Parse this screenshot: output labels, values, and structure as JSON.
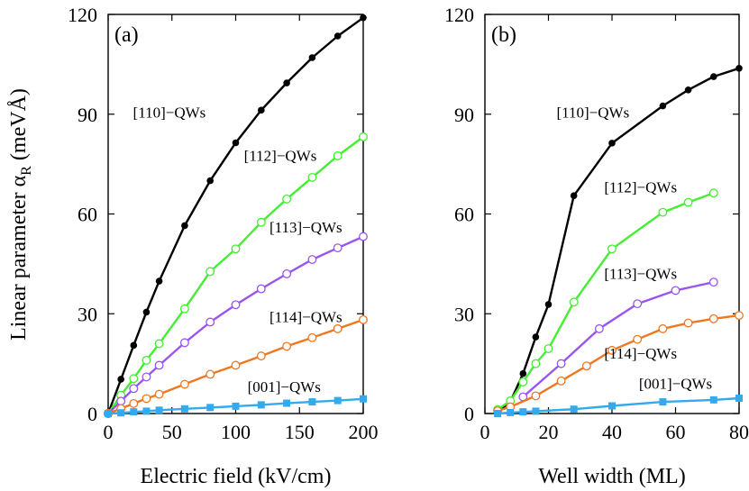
{
  "ylabel_text": "Linear parameter α",
  "ylabel_sub": "R",
  "ylabel_unit": " (meVÅ)",
  "chart_data": [
    {
      "type": "line",
      "panel_label": "(a)",
      "xlabel": "Electric field (kV/cm)",
      "ylabel": "Linear parameter αR (meVÅ)",
      "xlim": [
        0,
        200
      ],
      "ylim": [
        0,
        120
      ],
      "xticks": [
        0,
        50,
        100,
        150,
        200
      ],
      "yticks": [
        0,
        30,
        60,
        90,
        120
      ],
      "series": [
        {
          "name": "[110]−QWs",
          "color": "#000000",
          "marker": "filled-circle",
          "x": [
            0,
            10,
            20,
            30,
            40,
            60,
            80,
            100,
            120,
            140,
            160,
            180,
            200
          ],
          "y": [
            0,
            10.3,
            20.5,
            30.5,
            39.8,
            56.5,
            70,
            81.4,
            91.2,
            99.4,
            107,
            113.5,
            119
          ],
          "label_pos": [
            48,
            89
          ]
        },
        {
          "name": "[112]−QWs",
          "color": "#44ee33",
          "marker": "open-circle",
          "x": [
            0,
            10,
            20,
            30,
            40,
            60,
            80,
            100,
            120,
            140,
            160,
            180,
            200
          ],
          "y": [
            0,
            5.5,
            10.5,
            16,
            21,
            31.5,
            42.7,
            49.5,
            57.5,
            64.5,
            71,
            77.5,
            83.2
          ],
          "label_pos": [
            135,
            76
          ]
        },
        {
          "name": "[113]−QWs",
          "color": "#9955ee",
          "marker": "open-circle",
          "x": [
            0,
            10,
            20,
            30,
            40,
            60,
            80,
            100,
            120,
            140,
            160,
            180,
            200
          ],
          "y": [
            0,
            3.7,
            7.5,
            11,
            14.5,
            21.3,
            27.5,
            32.7,
            37.5,
            42,
            46.3,
            49.8,
            53.2
          ],
          "label_pos": [
            155,
            54.5
          ]
        },
        {
          "name": "[114]−QWs",
          "color": "#ee7722",
          "marker": "open-circle",
          "x": [
            0,
            10,
            20,
            30,
            40,
            60,
            80,
            100,
            120,
            140,
            160,
            180,
            200
          ],
          "y": [
            0,
            1.5,
            3,
            4.5,
            5.8,
            8.8,
            11.8,
            14.5,
            17.3,
            20.2,
            22.8,
            25.5,
            28.2
          ],
          "label_pos": [
            155,
            27.5
          ]
        },
        {
          "name": "[001]−QWs",
          "color": "#33aaee",
          "marker": "filled-square",
          "x": [
            0,
            10,
            20,
            30,
            40,
            60,
            80,
            100,
            120,
            140,
            160,
            180,
            200
          ],
          "y": [
            0,
            0.2,
            0.5,
            0.7,
            1,
            1.4,
            1.8,
            2.2,
            2.6,
            3.1,
            3.5,
            3.9,
            4.4
          ],
          "label_pos": [
            138,
            6.5
          ]
        }
      ]
    },
    {
      "type": "line",
      "panel_label": "(b)",
      "xlabel": "Well width (ML)",
      "ylabel": "",
      "xlim": [
        0,
        80
      ],
      "ylim": [
        0,
        120
      ],
      "xticks": [
        0,
        20,
        40,
        60,
        80
      ],
      "yticks": [
        0,
        30,
        60,
        90,
        120
      ],
      "series": [
        {
          "name": "[110]−QWs",
          "color": "#000000",
          "marker": "filled-circle",
          "x": [
            4,
            8,
            12,
            16,
            20,
            28,
            40,
            56,
            64,
            72,
            80
          ],
          "y": [
            0.5,
            3.5,
            12,
            23,
            32.8,
            65.5,
            81.3,
            92.5,
            97.3,
            101.3,
            103.8
          ],
          "label_pos": [
            34,
            89
          ]
        },
        {
          "name": "[112]−QWs",
          "color": "#44ee33",
          "marker": "open-circle",
          "x": [
            4,
            8,
            12,
            16,
            20,
            28,
            40,
            56,
            64,
            72
          ],
          "y": [
            1.2,
            3.8,
            9.5,
            15,
            19.5,
            33.5,
            49.5,
            60.5,
            63.5,
            66.3
          ],
          "label_pos": [
            49,
            66.5
          ]
        },
        {
          "name": "[113]−QWs",
          "color": "#9955ee",
          "marker": "open-circle",
          "x": [
            12,
            24,
            36,
            48,
            60,
            72
          ],
          "y": [
            5,
            15,
            25.5,
            33,
            37,
            39.5
          ],
          "label_pos": [
            49,
            40.5
          ]
        },
        {
          "name": "[114]−QWs",
          "color": "#ee7722",
          "marker": "open-circle",
          "x": [
            4,
            8,
            16,
            24,
            32,
            40,
            48,
            56,
            64,
            72,
            80
          ],
          "y": [
            0.8,
            2,
            5.3,
            9.8,
            14.3,
            19,
            22.3,
            25.5,
            27.2,
            28.5,
            29.5
          ],
          "label_pos": [
            49,
            16.5
          ]
        },
        {
          "name": "[001]−QWs",
          "color": "#33aaee",
          "marker": "filled-square",
          "x": [
            4,
            8,
            12,
            16,
            28,
            40,
            56,
            72,
            80
          ],
          "y": [
            0,
            0.3,
            0.5,
            0.7,
            1.3,
            2.3,
            3.5,
            4.1,
            4.6
          ],
          "label_pos": [
            60,
            7.5
          ]
        }
      ]
    }
  ]
}
